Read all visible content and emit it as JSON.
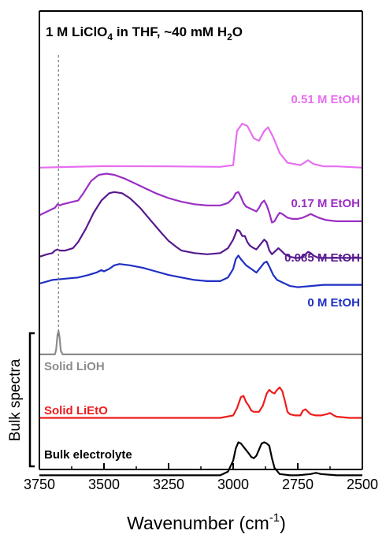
{
  "chart_data": {
    "type": "line",
    "title_parts": {
      "pre": "1 M LiClO",
      "sub": "4",
      "post": " in THF, ~40 mM H",
      "sub2": "2",
      "post2": "O"
    },
    "xlabel_parts": {
      "pre": "Wavenumber (cm",
      "sup": "-1",
      "post": ")"
    },
    "ylabel": "",
    "group_label": "Bulk spectra",
    "xlim": [
      3750,
      2500
    ],
    "x_reversed": true,
    "x_ticks": [
      "3750",
      "3500",
      "3250",
      "3000",
      "2750",
      "2500"
    ],
    "x_tick_values": [
      3750,
      3500,
      3250,
      3000,
      2750,
      2500
    ],
    "y_ticks_shown": false,
    "grid": false,
    "reference_line": {
      "x": 3676,
      "style": "dashed",
      "color": "#777777"
    },
    "series": [
      {
        "name": "0.51 M EtOH",
        "color": "#e86ef0",
        "offset": 0.95,
        "points": [
          [
            3750,
            0.0
          ],
          [
            3650,
            0.005
          ],
          [
            3500,
            0.012
          ],
          [
            3250,
            0.01
          ],
          [
            3050,
            0.006
          ],
          [
            3000,
            0.02
          ],
          [
            2985,
            0.3
          ],
          [
            2965,
            0.36
          ],
          [
            2945,
            0.34
          ],
          [
            2920,
            0.24
          ],
          [
            2900,
            0.22
          ],
          [
            2880,
            0.3
          ],
          [
            2865,
            0.33
          ],
          [
            2845,
            0.25
          ],
          [
            2820,
            0.12
          ],
          [
            2790,
            0.04
          ],
          [
            2740,
            0.02
          ],
          [
            2710,
            0.06
          ],
          [
            2690,
            0.03
          ],
          [
            2650,
            0.01
          ],
          [
            2600,
            0.01
          ],
          [
            2500,
            0.0
          ]
        ]
      },
      {
        "name": "0.17 M EtOH",
        "color": "#9a2ec4",
        "offset": 0.56,
        "points": [
          [
            3750,
            0.0
          ],
          [
            3730,
            0.02
          ],
          [
            3700,
            0.05
          ],
          [
            3690,
            0.06
          ],
          [
            3680,
            0.09
          ],
          [
            3670,
            0.08
          ],
          [
            3660,
            0.09
          ],
          [
            3640,
            0.1
          ],
          [
            3620,
            0.11
          ],
          [
            3600,
            0.12
          ],
          [
            3580,
            0.18
          ],
          [
            3550,
            0.28
          ],
          [
            3520,
            0.33
          ],
          [
            3490,
            0.34
          ],
          [
            3460,
            0.33
          ],
          [
            3420,
            0.3
          ],
          [
            3380,
            0.26
          ],
          [
            3340,
            0.22
          ],
          [
            3300,
            0.18
          ],
          [
            3250,
            0.14
          ],
          [
            3200,
            0.11
          ],
          [
            3150,
            0.09
          ],
          [
            3100,
            0.08
          ],
          [
            3050,
            0.08
          ],
          [
            3020,
            0.1
          ],
          [
            3000,
            0.14
          ],
          [
            2990,
            0.18
          ],
          [
            2980,
            0.19
          ],
          [
            2970,
            0.15
          ],
          [
            2960,
            0.1
          ],
          [
            2950,
            0.07
          ],
          [
            2930,
            0.05
          ],
          [
            2910,
            0.03
          ],
          [
            2900,
            0.06
          ],
          [
            2890,
            0.1
          ],
          [
            2880,
            0.12
          ],
          [
            2870,
            0.08
          ],
          [
            2860,
            0.02
          ],
          [
            2850,
            -0.06
          ],
          [
            2840,
            -0.05
          ],
          [
            2830,
            -0.01
          ],
          [
            2820,
            0.02
          ],
          [
            2810,
            0.01
          ],
          [
            2790,
            -0.02
          ],
          [
            2770,
            -0.03
          ],
          [
            2750,
            -0.03
          ],
          [
            2730,
            -0.02
          ],
          [
            2710,
            0.0
          ],
          [
            2700,
            0.01
          ],
          [
            2690,
            0.0
          ],
          [
            2670,
            -0.02
          ],
          [
            2640,
            -0.04
          ],
          [
            2600,
            -0.05
          ],
          [
            2550,
            -0.05
          ],
          [
            2500,
            -0.05
          ]
        ]
      },
      {
        "name": "0.085 M EtOH",
        "color": "#571a8f",
        "offset": 0.22,
        "points": [
          [
            3750,
            0.0
          ],
          [
            3720,
            0.02
          ],
          [
            3700,
            0.03
          ],
          [
            3690,
            0.05
          ],
          [
            3680,
            0.06
          ],
          [
            3670,
            0.05
          ],
          [
            3650,
            0.05
          ],
          [
            3620,
            0.07
          ],
          [
            3600,
            0.12
          ],
          [
            3570,
            0.23
          ],
          [
            3540,
            0.36
          ],
          [
            3510,
            0.46
          ],
          [
            3480,
            0.52
          ],
          [
            3460,
            0.53
          ],
          [
            3430,
            0.52
          ],
          [
            3400,
            0.48
          ],
          [
            3360,
            0.4
          ],
          [
            3320,
            0.3
          ],
          [
            3280,
            0.2
          ],
          [
            3250,
            0.13
          ],
          [
            3220,
            0.08
          ],
          [
            3200,
            0.05
          ],
          [
            3150,
            0.03
          ],
          [
            3100,
            0.02
          ],
          [
            3050,
            0.03
          ],
          [
            3020,
            0.07
          ],
          [
            3000,
            0.14
          ],
          [
            2985,
            0.22
          ],
          [
            2975,
            0.21
          ],
          [
            2965,
            0.17
          ],
          [
            2955,
            0.17
          ],
          [
            2945,
            0.12
          ],
          [
            2935,
            0.09
          ],
          [
            2920,
            0.07
          ],
          [
            2910,
            0.06
          ],
          [
            2895,
            0.1
          ],
          [
            2880,
            0.14
          ],
          [
            2870,
            0.12
          ],
          [
            2860,
            0.05
          ],
          [
            2850,
            0.02
          ],
          [
            2840,
            0.04
          ],
          [
            2825,
            0.07
          ],
          [
            2815,
            0.05
          ],
          [
            2800,
            0.02
          ],
          [
            2780,
            0.0
          ],
          [
            2760,
            -0.01
          ],
          [
            2740,
            -0.01
          ],
          [
            2720,
            0.02
          ],
          [
            2710,
            0.04
          ],
          [
            2700,
            0.03
          ],
          [
            2690,
            0.01
          ],
          [
            2670,
            -0.01
          ],
          [
            2650,
            -0.01
          ],
          [
            2600,
            -0.01
          ],
          [
            2550,
            -0.01
          ],
          [
            2500,
            -0.01
          ]
        ]
      },
      {
        "name": "0 M EtOH",
        "color": "#1f2fc2",
        "offset": 0.0,
        "points": [
          [
            3750,
            0.0
          ],
          [
            3700,
            0.03
          ],
          [
            3650,
            0.04
          ],
          [
            3600,
            0.05
          ],
          [
            3560,
            0.07
          ],
          [
            3530,
            0.09
          ],
          [
            3510,
            0.11
          ],
          [
            3500,
            0.1
          ],
          [
            3480,
            0.12
          ],
          [
            3460,
            0.15
          ],
          [
            3440,
            0.16
          ],
          [
            3400,
            0.15
          ],
          [
            3350,
            0.13
          ],
          [
            3300,
            0.1
          ],
          [
            3250,
            0.07
          ],
          [
            3200,
            0.05
          ],
          [
            3150,
            0.03
          ],
          [
            3100,
            0.02
          ],
          [
            3050,
            0.02
          ],
          [
            3020,
            0.05
          ],
          [
            3000,
            0.12
          ],
          [
            2990,
            0.2
          ],
          [
            2980,
            0.23
          ],
          [
            2970,
            0.2
          ],
          [
            2950,
            0.15
          ],
          [
            2930,
            0.12
          ],
          [
            2910,
            0.09
          ],
          [
            2895,
            0.13
          ],
          [
            2880,
            0.17
          ],
          [
            2870,
            0.18
          ],
          [
            2860,
            0.14
          ],
          [
            2845,
            0.07
          ],
          [
            2830,
            0.03
          ],
          [
            2800,
            0.0
          ],
          [
            2780,
            -0.02
          ],
          [
            2750,
            -0.03
          ],
          [
            2700,
            -0.02
          ],
          [
            2650,
            -0.01
          ],
          [
            2600,
            -0.01
          ],
          [
            2550,
            -0.01
          ],
          [
            2500,
            -0.01
          ]
        ]
      },
      {
        "name": "Solid LiOH",
        "color": "#8c8c8c",
        "offset": -0.58,
        "points": [
          [
            3750,
            0.0
          ],
          [
            3700,
            0.0
          ],
          [
            3690,
            0.0
          ],
          [
            3685,
            0.04
          ],
          [
            3680,
            0.16
          ],
          [
            3676,
            0.19
          ],
          [
            3672,
            0.14
          ],
          [
            3667,
            0.03
          ],
          [
            3660,
            0.0
          ],
          [
            3500,
            0.0
          ],
          [
            3000,
            0.0
          ],
          [
            2500,
            0.0
          ]
        ]
      },
      {
        "name": "Solid LiEtO",
        "color": "#ee1c1c",
        "offset": -1.1,
        "points": [
          [
            3750,
            0.0
          ],
          [
            3500,
            0.0
          ],
          [
            3250,
            0.0
          ],
          [
            3050,
            0.0
          ],
          [
            3000,
            0.02
          ],
          [
            2985,
            0.08
          ],
          [
            2970,
            0.17
          ],
          [
            2960,
            0.18
          ],
          [
            2950,
            0.13
          ],
          [
            2940,
            0.1
          ],
          [
            2930,
            0.06
          ],
          [
            2920,
            0.05
          ],
          [
            2900,
            0.05
          ],
          [
            2885,
            0.1
          ],
          [
            2870,
            0.2
          ],
          [
            2860,
            0.23
          ],
          [
            2850,
            0.21
          ],
          [
            2840,
            0.2
          ],
          [
            2830,
            0.23
          ],
          [
            2820,
            0.25
          ],
          [
            2810,
            0.22
          ],
          [
            2800,
            0.14
          ],
          [
            2790,
            0.05
          ],
          [
            2780,
            0.03
          ],
          [
            2760,
            0.02
          ],
          [
            2740,
            0.02
          ],
          [
            2730,
            0.06
          ],
          [
            2720,
            0.07
          ],
          [
            2710,
            0.05
          ],
          [
            2700,
            0.03
          ],
          [
            2680,
            0.02
          ],
          [
            2660,
            0.02
          ],
          [
            2640,
            0.03
          ],
          [
            2625,
            0.04
          ],
          [
            2610,
            0.02
          ],
          [
            2600,
            0.01
          ],
          [
            2550,
            0.0
          ],
          [
            2500,
            0.0
          ]
        ]
      },
      {
        "name": "Bulk electrolyte",
        "color": "#000000",
        "offset": -1.57,
        "points": [
          [
            3750,
            0.0
          ],
          [
            3500,
            0.0
          ],
          [
            3250,
            0.0
          ],
          [
            3050,
            0.0
          ],
          [
            3020,
            0.03
          ],
          [
            3000,
            0.12
          ],
          [
            2990,
            0.22
          ],
          [
            2980,
            0.27
          ],
          [
            2970,
            0.26
          ],
          [
            2955,
            0.22
          ],
          [
            2940,
            0.18
          ],
          [
            2930,
            0.15
          ],
          [
            2920,
            0.14
          ],
          [
            2910,
            0.16
          ],
          [
            2900,
            0.21
          ],
          [
            2890,
            0.26
          ],
          [
            2880,
            0.27
          ],
          [
            2870,
            0.26
          ],
          [
            2860,
            0.24
          ],
          [
            2850,
            0.14
          ],
          [
            2840,
            0.06
          ],
          [
            2820,
            0.01
          ],
          [
            2780,
            0.0
          ],
          [
            2750,
            0.0
          ],
          [
            2700,
            0.01
          ],
          [
            2680,
            0.02
          ],
          [
            2660,
            0.01
          ],
          [
            2600,
            0.0
          ],
          [
            2500,
            0.0
          ]
        ]
      }
    ]
  }
}
